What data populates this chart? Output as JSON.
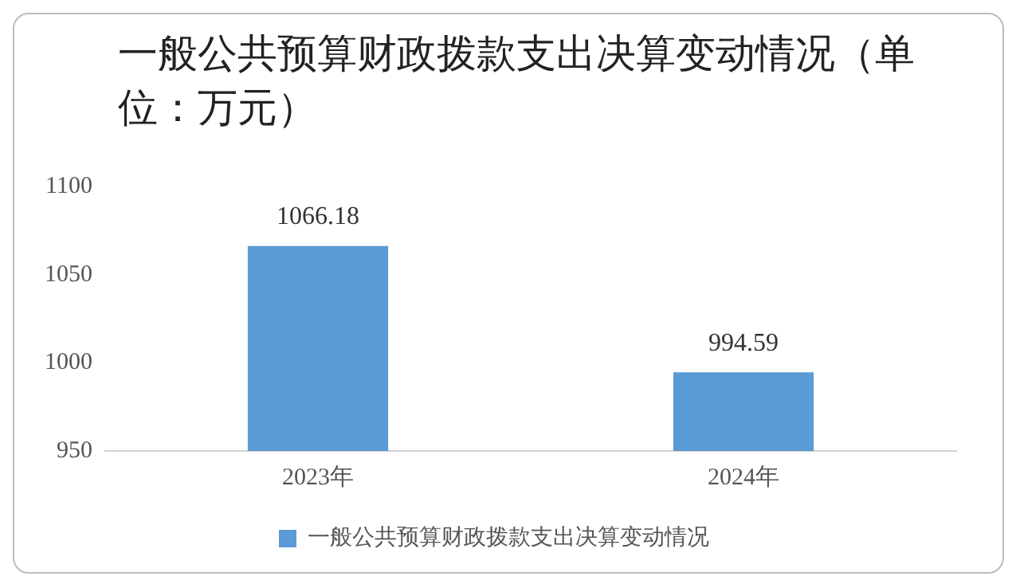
{
  "chart_data": {
    "type": "bar",
    "title": "一般公共预算财政拨款支出决算变动情况（单位：万元）",
    "categories": [
      "2023年",
      "2024年"
    ],
    "series": [
      {
        "name": "一般公共预算财政拨款支出决算变动情况",
        "color": "#5b9bd5",
        "values": [
          1066.18,
          994.59
        ]
      }
    ],
    "ylim": [
      950,
      1100
    ],
    "yticks": [
      950,
      1000,
      1050,
      1100
    ],
    "grid": false,
    "legend": "bottom",
    "data_labels": true
  }
}
